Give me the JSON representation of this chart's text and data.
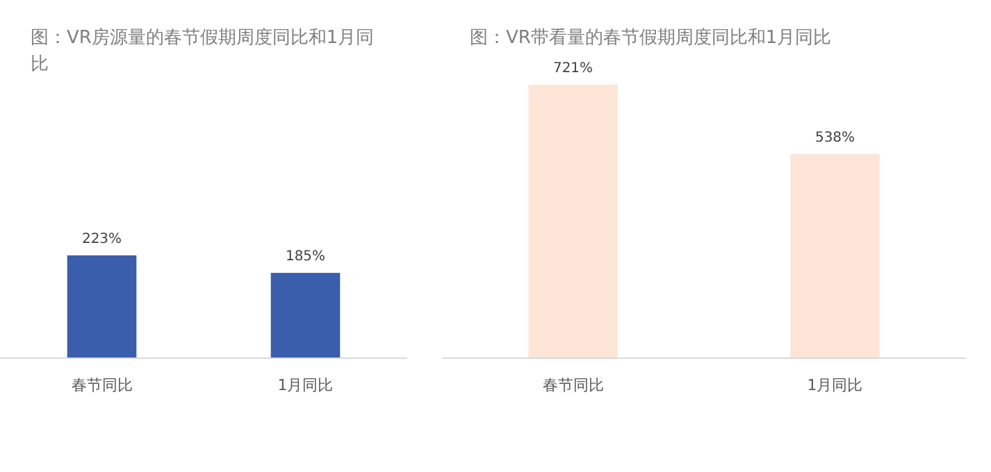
{
  "chart_data": [
    {
      "type": "bar",
      "title": "图：VR房源量的春节假期周度同比和1月同比",
      "categories": [
        "春节同比",
        "1月同比"
      ],
      "values": [
        223,
        185
      ],
      "value_labels": [
        "223%",
        "185%"
      ],
      "color": "#3a5eab"
    },
    {
      "type": "bar",
      "title": "图：VR带看量的春节假期周度同比和1月同比",
      "categories": [
        "春节同比",
        "1月同比"
      ],
      "values": [
        721,
        538
      ],
      "value_labels": [
        "721%",
        "538%"
      ],
      "color": "#fce4d6"
    }
  ]
}
